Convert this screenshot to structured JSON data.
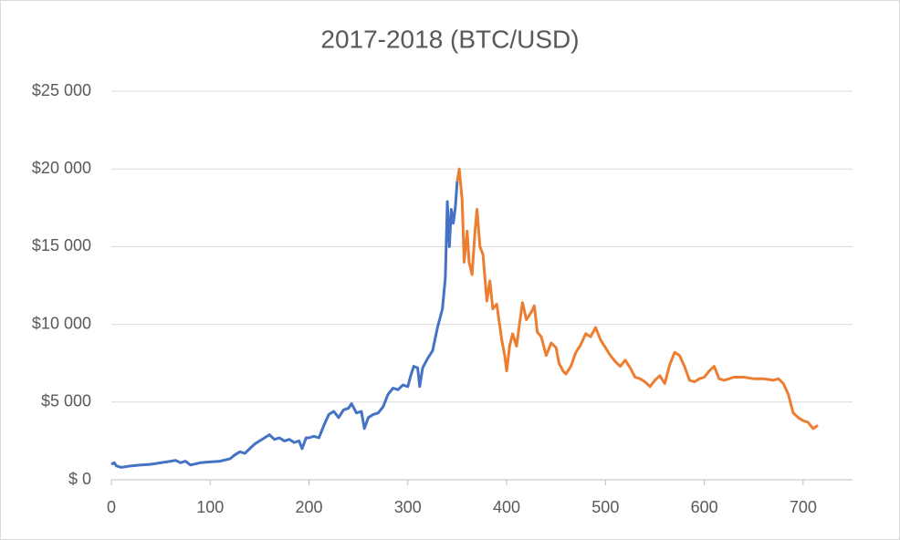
{
  "chart_data": {
    "type": "line",
    "title": "2017-2018 (BTC/USD)",
    "xlim": [
      0,
      750
    ],
    "xticks": [
      0,
      100,
      200,
      300,
      400,
      500,
      600,
      700
    ],
    "ylim": [
      0,
      25000
    ],
    "yticks": [
      {
        "value": 0,
        "label": "$ 0"
      },
      {
        "value": 5000,
        "label": "$5 000"
      },
      {
        "value": 10000,
        "label": "$10 000"
      },
      {
        "value": 15000,
        "label": "$15 000"
      },
      {
        "value": 20000,
        "label": "$20 000"
      },
      {
        "value": 25000,
        "label": "$25 000"
      }
    ],
    "grid": true,
    "series": [
      {
        "color": "#4472c4",
        "x": [
          0,
          3,
          5,
          10,
          20,
          30,
          40,
          50,
          60,
          65,
          70,
          75,
          80,
          90,
          100,
          110,
          120,
          125,
          130,
          135,
          140,
          145,
          150,
          155,
          160,
          165,
          170,
          175,
          180,
          185,
          190,
          193,
          197,
          200,
          205,
          210,
          215,
          220,
          225,
          230,
          235,
          240,
          243,
          248,
          253,
          256,
          260,
          265,
          270,
          275,
          280,
          285,
          290,
          295,
          300,
          303,
          306,
          310,
          312,
          315,
          320,
          325,
          330,
          335,
          338,
          340,
          342,
          344,
          346,
          348,
          350
        ],
        "values": [
          1000,
          1100,
          900,
          800,
          900,
          950,
          1000,
          1100,
          1200,
          1250,
          1100,
          1200,
          950,
          1100,
          1150,
          1200,
          1350,
          1600,
          1800,
          1700,
          2000,
          2300,
          2500,
          2700,
          2900,
          2600,
          2700,
          2500,
          2600,
          2400,
          2500,
          2000,
          2700,
          2700,
          2800,
          2700,
          3500,
          4200,
          4400,
          4000,
          4500,
          4600,
          4900,
          4300,
          4400,
          3300,
          4000,
          4200,
          4300,
          4700,
          5500,
          5900,
          5800,
          6100,
          6000,
          6700,
          7300,
          7200,
          6000,
          7200,
          7800,
          8300,
          9800,
          11000,
          13000,
          17900,
          15000,
          17400,
          16500,
          17500,
          19200
        ]
      },
      {
        "color": "#ed7d31",
        "x": [
          350,
          352,
          355,
          357,
          360,
          362,
          365,
          368,
          370,
          373,
          376,
          380,
          383,
          386,
          390,
          395,
          398,
          400,
          403,
          406,
          410,
          413,
          416,
          420,
          425,
          428,
          431,
          435,
          440,
          445,
          450,
          453,
          457,
          460,
          465,
          470,
          475,
          480,
          485,
          490,
          495,
          500,
          505,
          510,
          515,
          520,
          525,
          530,
          535,
          540,
          545,
          550,
          555,
          560,
          565,
          570,
          575,
          580,
          585,
          590,
          595,
          600,
          605,
          610,
          615,
          620,
          630,
          640,
          650,
          660,
          670,
          675,
          680,
          685,
          690,
          695,
          700,
          705,
          710,
          715
        ],
        "values": [
          19200,
          20000,
          18000,
          14000,
          16000,
          14000,
          13200,
          16000,
          17400,
          15000,
          14500,
          11500,
          12800,
          11000,
          11300,
          9000,
          8000,
          7000,
          8600,
          9400,
          8600,
          10000,
          11400,
          10300,
          10800,
          11200,
          9500,
          9200,
          8000,
          8800,
          8500,
          7500,
          7000,
          6800,
          7300,
          8200,
          8700,
          9400,
          9200,
          9800,
          9000,
          8500,
          8000,
          7600,
          7300,
          7700,
          7200,
          6600,
          6500,
          6300,
          6000,
          6400,
          6700,
          6200,
          7400,
          8200,
          8000,
          7300,
          6400,
          6300,
          6500,
          6600,
          7000,
          7300,
          6500,
          6400,
          6600,
          6600,
          6500,
          6500,
          6400,
          6500,
          6200,
          5500,
          4300,
          4000,
          3800,
          3700,
          3300,
          3500
        ]
      }
    ]
  }
}
